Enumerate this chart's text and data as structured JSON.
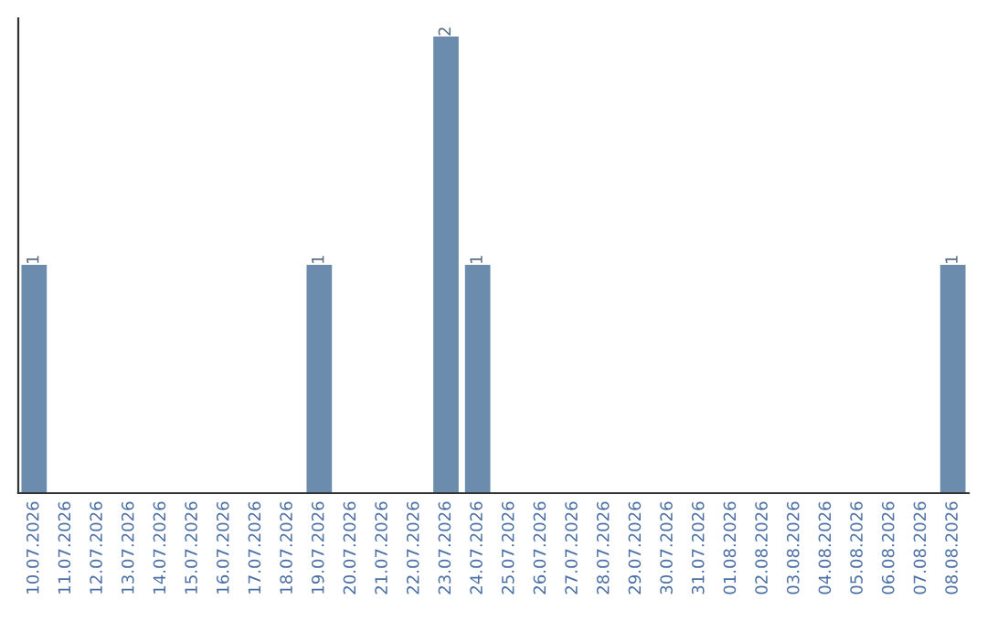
{
  "chart_data": {
    "type": "bar",
    "categories": [
      "10.07.2026",
      "11.07.2026",
      "12.07.2026",
      "13.07.2026",
      "14.07.2026",
      "15.07.2026",
      "16.07.2026",
      "17.07.2026",
      "18.07.2026",
      "19.07.2026",
      "20.07.2026",
      "21.07.2026",
      "22.07.2026",
      "23.07.2026",
      "24.07.2026",
      "25.07.2026",
      "26.07.2026",
      "27.07.2026",
      "28.07.2026",
      "29.07.2026",
      "30.07.2026",
      "31.07.2026",
      "01.08.2026",
      "02.08.2026",
      "03.08.2026",
      "04.08.2026",
      "05.08.2026",
      "06.08.2026",
      "07.08.2026",
      "08.08.2026"
    ],
    "values": [
      1,
      0,
      0,
      0,
      0,
      0,
      0,
      0,
      0,
      1,
      0,
      0,
      0,
      2,
      1,
      0,
      0,
      0,
      0,
      0,
      0,
      0,
      0,
      0,
      0,
      0,
      0,
      0,
      0,
      1
    ],
    "value_labels": [
      "1",
      null,
      null,
      null,
      null,
      null,
      null,
      null,
      null,
      "1",
      null,
      null,
      null,
      "2",
      "1",
      null,
      null,
      null,
      null,
      null,
      null,
      null,
      null,
      null,
      null,
      null,
      null,
      null,
      null,
      "1"
    ],
    "color": "#6b8cad",
    "grid": false,
    "legend": false
  }
}
